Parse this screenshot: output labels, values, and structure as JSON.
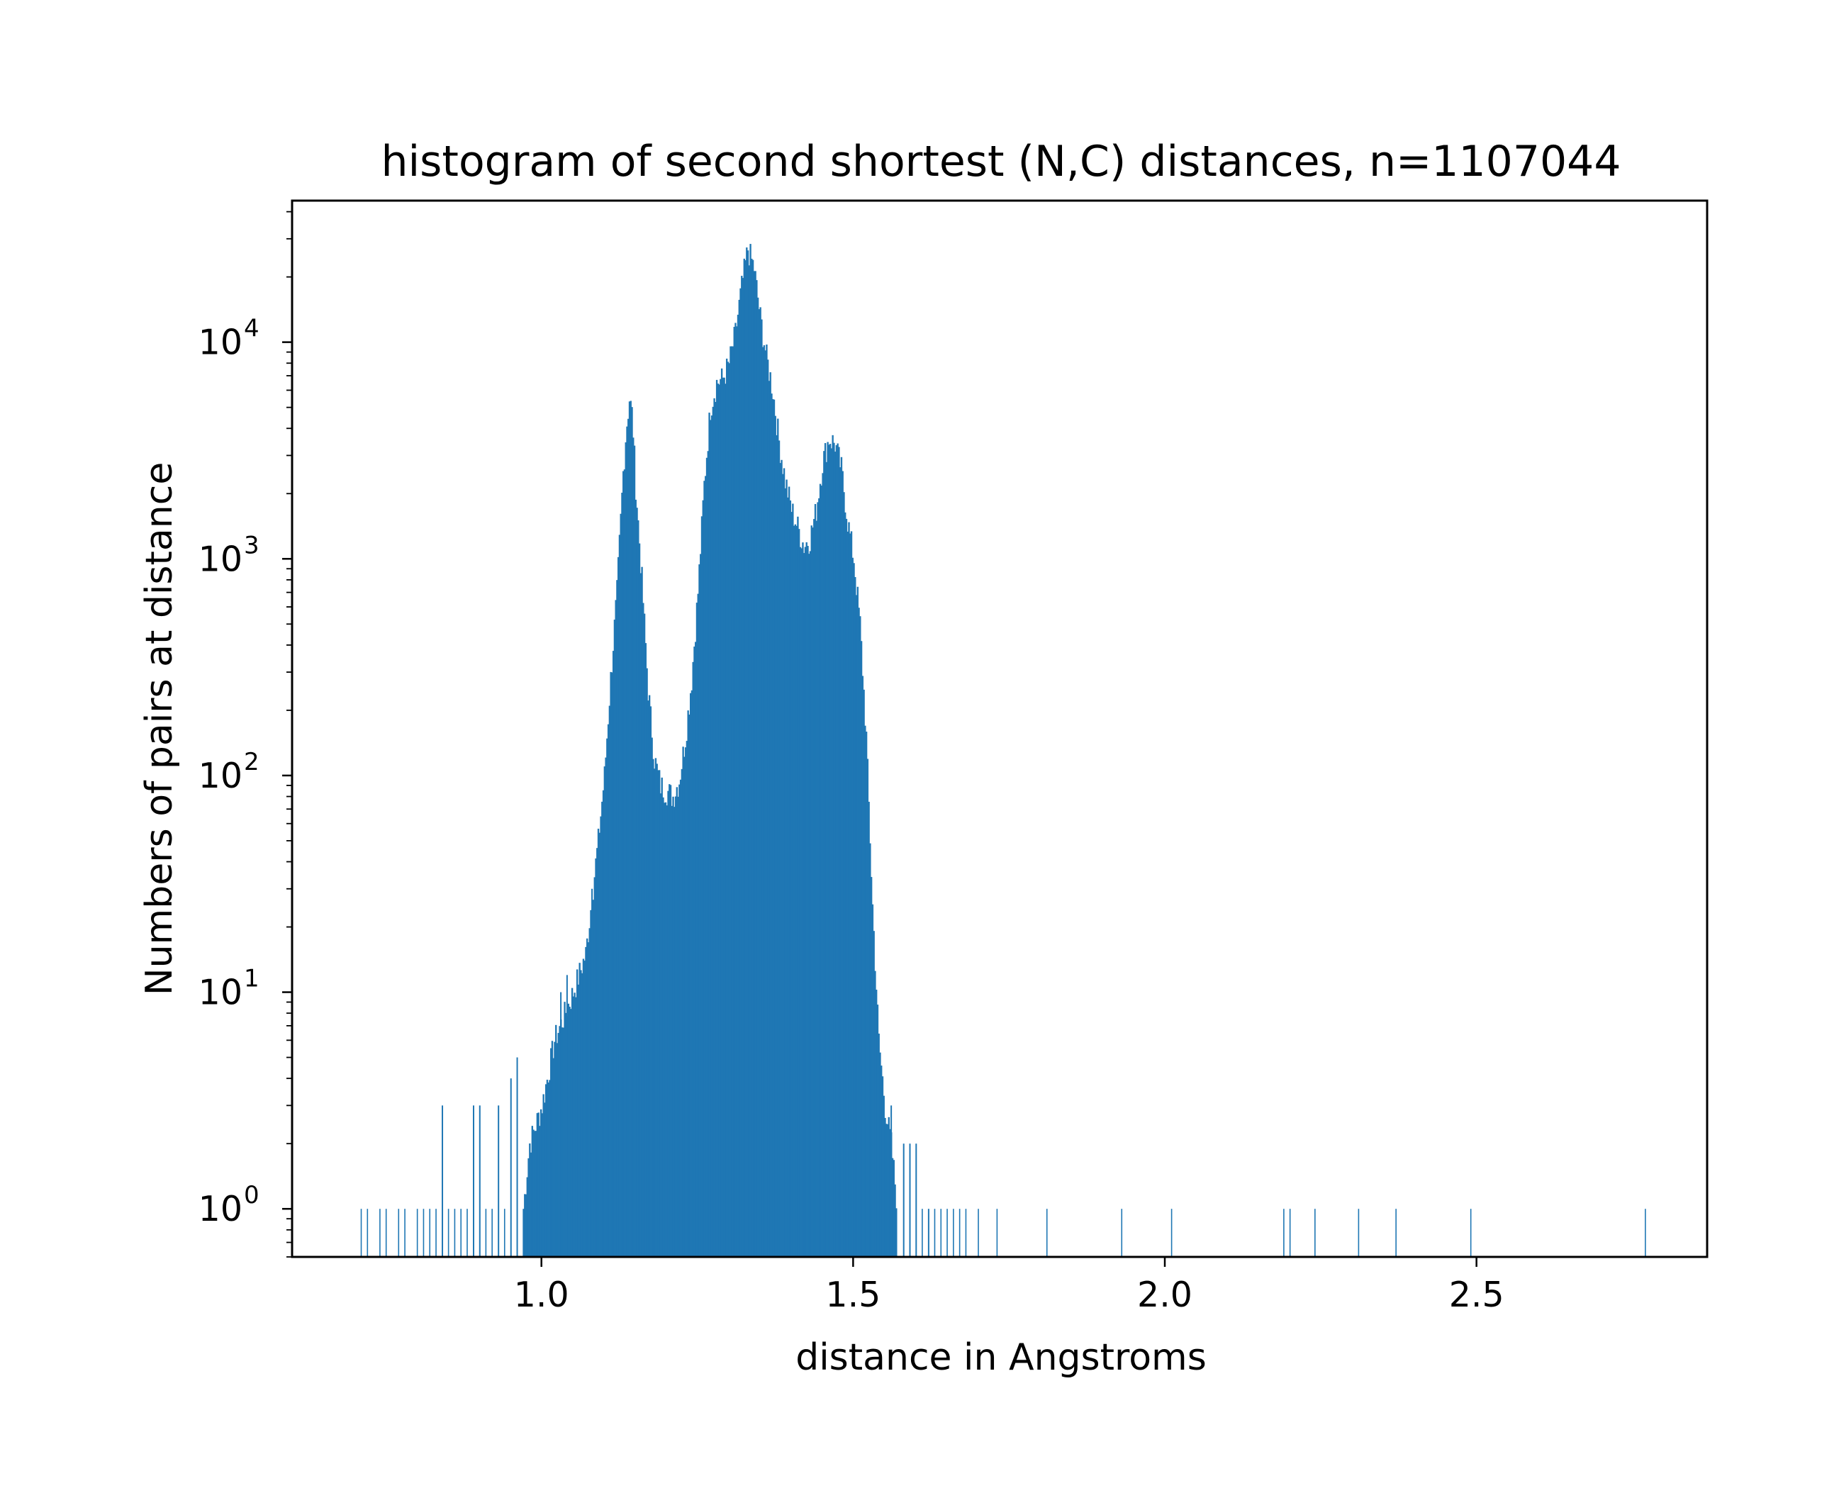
{
  "chart_data": {
    "type": "bar",
    "title": "histogram of second shortest (N,C) distances, n=1107044",
    "xlabel": "distance in Angstroms",
    "ylabel": "Numbers of pairs at distance",
    "xlim": [
      0.6,
      2.87
    ],
    "ylim": [
      0.6,
      45000
    ],
    "yscale": "log",
    "xticks": [
      1.0,
      1.5,
      2.0,
      2.5
    ],
    "xtick_labels": [
      "1.0",
      "1.5",
      "2.0",
      "2.5"
    ],
    "yticks": [
      {
        "value": 1,
        "base": "10",
        "exp": "0"
      },
      {
        "value": 10,
        "base": "10",
        "exp": "1"
      },
      {
        "value": 100,
        "base": "10",
        "exp": "2"
      },
      {
        "value": 1000,
        "base": "10",
        "exp": "3"
      },
      {
        "value": 10000,
        "base": "10",
        "exp": "4"
      }
    ],
    "bar_color": "#1f77b4",
    "bin_width": 0.002,
    "envelope": [
      [
        0.97,
        1
      ],
      [
        0.98,
        2
      ],
      [
        1.0,
        3
      ],
      [
        1.02,
        6
      ],
      [
        1.05,
        10
      ],
      [
        1.07,
        15
      ],
      [
        1.09,
        50
      ],
      [
        1.1,
        100
      ],
      [
        1.11,
        280
      ],
      [
        1.12,
        700
      ],
      [
        1.13,
        2500
      ],
      [
        1.135,
        4000
      ],
      [
        1.14,
        5500
      ],
      [
        1.145,
        4500
      ],
      [
        1.15,
        2200
      ],
      [
        1.16,
        800
      ],
      [
        1.17,
        250
      ],
      [
        1.18,
        120
      ],
      [
        1.19,
        90
      ],
      [
        1.2,
        85
      ],
      [
        1.21,
        80
      ],
      [
        1.22,
        95
      ],
      [
        1.23,
        150
      ],
      [
        1.24,
        280
      ],
      [
        1.25,
        700
      ],
      [
        1.26,
        2200
      ],
      [
        1.27,
        5000
      ],
      [
        1.28,
        6500
      ],
      [
        1.29,
        6800
      ],
      [
        1.3,
        8000
      ],
      [
        1.31,
        11000
      ],
      [
        1.32,
        18000
      ],
      [
        1.33,
        27000
      ],
      [
        1.34,
        22000
      ],
      [
        1.35,
        13000
      ],
      [
        1.36,
        8500
      ],
      [
        1.37,
        6000
      ],
      [
        1.38,
        3500
      ],
      [
        1.39,
        2300
      ],
      [
        1.4,
        1700
      ],
      [
        1.41,
        1400
      ],
      [
        1.42,
        1150
      ],
      [
        1.43,
        1250
      ],
      [
        1.44,
        1700
      ],
      [
        1.45,
        2800
      ],
      [
        1.46,
        3600
      ],
      [
        1.47,
        3400
      ],
      [
        1.48,
        2600
      ],
      [
        1.49,
        1500
      ],
      [
        1.5,
        1000
      ],
      [
        1.51,
        500
      ],
      [
        1.52,
        150
      ],
      [
        1.53,
        25
      ],
      [
        1.54,
        6
      ],
      [
        1.55,
        3
      ],
      [
        1.56,
        2
      ],
      [
        1.57,
        1
      ]
    ],
    "scattered_counts": [
      {
        "x": 0.84,
        "y": 3
      },
      {
        "x": 0.89,
        "y": 3
      },
      {
        "x": 0.9,
        "y": 3
      },
      {
        "x": 0.93,
        "y": 3
      },
      {
        "x": 0.95,
        "y": 4
      },
      {
        "x": 0.96,
        "y": 5
      },
      {
        "x": 1.03,
        "y": 10
      },
      {
        "x": 1.04,
        "y": 12
      },
      {
        "x": 1.08,
        "y": 30
      },
      {
        "x": 1.56,
        "y": 3
      },
      {
        "x": 1.58,
        "y": 2
      },
      {
        "x": 1.59,
        "y": 2
      },
      {
        "x": 1.6,
        "y": 2
      },
      {
        "x": 1.62,
        "y": 1
      }
    ],
    "isolated_ones": [
      0.71,
      0.72,
      0.74,
      0.75,
      0.77,
      0.78,
      0.8,
      0.81,
      0.82,
      0.83,
      0.85,
      0.86,
      0.87,
      0.88,
      0.91,
      0.92,
      0.94,
      1.59,
      1.61,
      1.63,
      1.64,
      1.65,
      1.66,
      1.67,
      1.68,
      1.7,
      1.73,
      1.81,
      1.93,
      2.01,
      2.19,
      2.2,
      2.24,
      2.31,
      2.37,
      2.49,
      2.77
    ]
  }
}
